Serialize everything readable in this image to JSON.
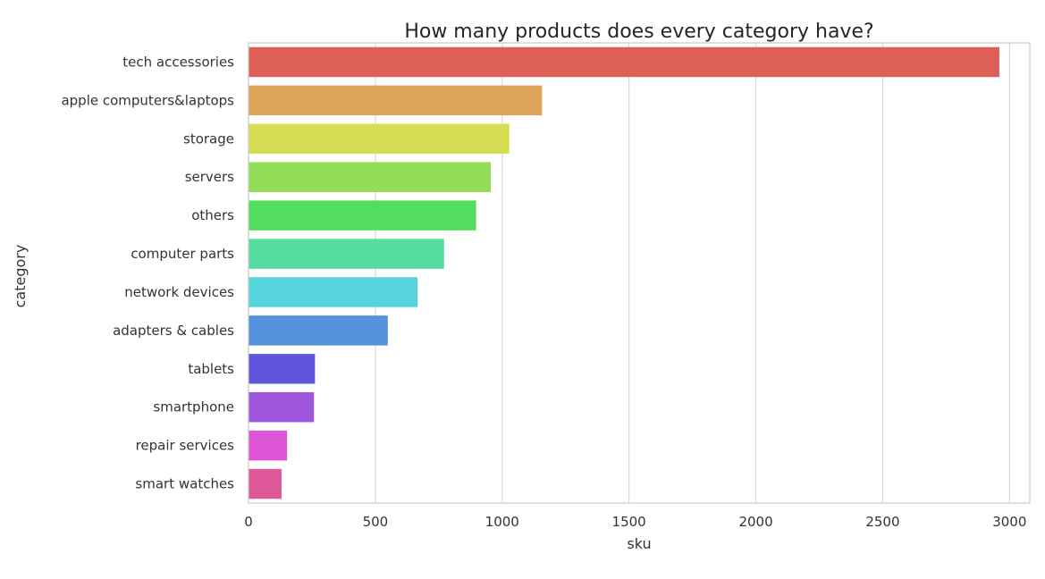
{
  "chart_data": {
    "type": "bar",
    "orientation": "horizontal",
    "title": "How many products does every category have?",
    "xlabel": "sku",
    "ylabel": "category",
    "xlim": [
      0,
      3080
    ],
    "xticks": [
      0,
      500,
      1000,
      1500,
      2000,
      2500,
      3000
    ],
    "grid": true,
    "categories": [
      "tech accessories",
      "apple computers&laptops",
      "storage",
      "servers",
      "others",
      "computer parts",
      "network devices",
      "adapters & cables",
      "tablets",
      "smartphone",
      "repair services",
      "smart watches"
    ],
    "values": [
      2960,
      1157,
      1028,
      955,
      897,
      771,
      666,
      549,
      262,
      258,
      152,
      130
    ],
    "colors": [
      "#de5f57",
      "#dda356",
      "#d6dd55",
      "#92dd58",
      "#53dd5f",
      "#55dd9f",
      "#56d5dd",
      "#5592dd",
      "#5f56dd",
      "#a055dd",
      "#dd55d6",
      "#dd5799"
    ]
  }
}
